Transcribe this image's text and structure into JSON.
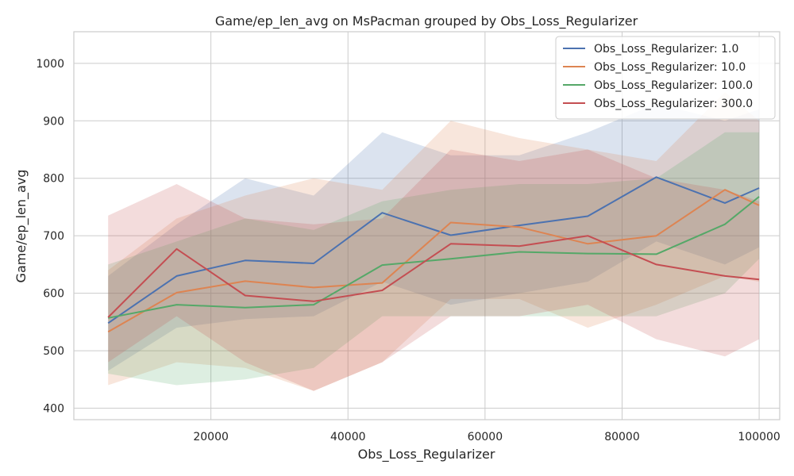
{
  "chart_data": {
    "type": "line",
    "title": "Game/ep_len_avg on MsPacman grouped by Obs_Loss_Regularizer",
    "xlabel": "Obs_Loss_Regularizer",
    "ylabel": "Game/ep_len_avg",
    "xlim": [
      0,
      103000
    ],
    "ylim": [
      380,
      1055
    ],
    "x_ticks": [
      20000,
      40000,
      60000,
      80000,
      100000
    ],
    "y_ticks": [
      400,
      500,
      600,
      700,
      800,
      900,
      1000
    ],
    "grid": true,
    "legend_position": "top-right",
    "shaded_band": "confidence interval around each series",
    "x": [
      5000,
      15000,
      25000,
      35000,
      45000,
      55000,
      65000,
      75000,
      85000,
      95000,
      100000
    ],
    "series": [
      {
        "name": "Obs_Loss_Regularizer: 1.0",
        "color": "#4c72b0",
        "values": [
          548,
          630,
          657,
          652,
          740,
          701,
          718,
          734,
          802,
          757,
          783
        ],
        "band_lower": [
          465,
          540,
          555,
          560,
          620,
          580,
          600,
          620,
          690,
          650,
          680
        ],
        "band_upper": [
          630,
          720,
          800,
          770,
          880,
          840,
          840,
          880,
          930,
          900,
          920
        ]
      },
      {
        "name": "Obs_Loss_Regularizer: 10.0",
        "color": "#dd8452",
        "values": [
          533,
          601,
          621,
          610,
          618,
          723,
          715,
          686,
          700,
          780,
          753
        ],
        "band_lower": [
          440,
          480,
          470,
          430,
          480,
          590,
          590,
          540,
          580,
          630,
          620
        ],
        "band_upper": [
          640,
          730,
          770,
          800,
          780,
          900,
          870,
          850,
          830,
          950,
          900
        ]
      },
      {
        "name": "Obs_Loss_Regularizer: 100.0",
        "color": "#55a868",
        "values": [
          557,
          580,
          575,
          580,
          649,
          660,
          672,
          669,
          668,
          720,
          768
        ],
        "band_lower": [
          460,
          440,
          450,
          470,
          560,
          560,
          560,
          560,
          560,
          600,
          660
        ],
        "band_upper": [
          650,
          690,
          730,
          710,
          760,
          780,
          790,
          790,
          800,
          880,
          880
        ]
      },
      {
        "name": "Obs_Loss_Regularizer: 300.0",
        "color": "#c44e52",
        "values": [
          558,
          677,
          596,
          586,
          605,
          686,
          682,
          700,
          650,
          630,
          624
        ],
        "band_lower": [
          480,
          560,
          480,
          430,
          480,
          560,
          560,
          580,
          520,
          490,
          520
        ],
        "band_upper": [
          735,
          790,
          730,
          720,
          730,
          850,
          830,
          850,
          800,
          780,
          760
        ]
      }
    ]
  }
}
